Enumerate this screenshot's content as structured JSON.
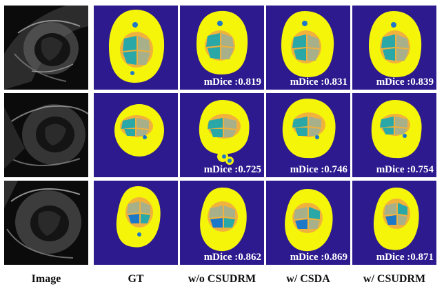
{
  "columns": [
    "Image",
    "GT",
    "w/o CSUDRM",
    "w/ CSDA",
    "w/ CSUDRM"
  ],
  "rows": [
    {
      "scores": [
        "mDice :0.819",
        "mDice :0.831",
        "mDice :0.839"
      ]
    },
    {
      "scores": [
        "mDice :0.725",
        "mDice :0.746",
        "mDice :0.754"
      ]
    },
    {
      "scores": [
        "mDice :0.862",
        "mDice :0.869",
        "mDice :0.871"
      ]
    }
  ],
  "colors": {
    "background": "#2e1a8f",
    "outer_region": "#f5f50a",
    "ring": "#f0b23c",
    "chamber_teal": "#2aa8a8",
    "chamber_grey": "#a8b08a",
    "chamber_blue": "#1e78c8",
    "ultrasound_dark": "#0a0a0a"
  }
}
